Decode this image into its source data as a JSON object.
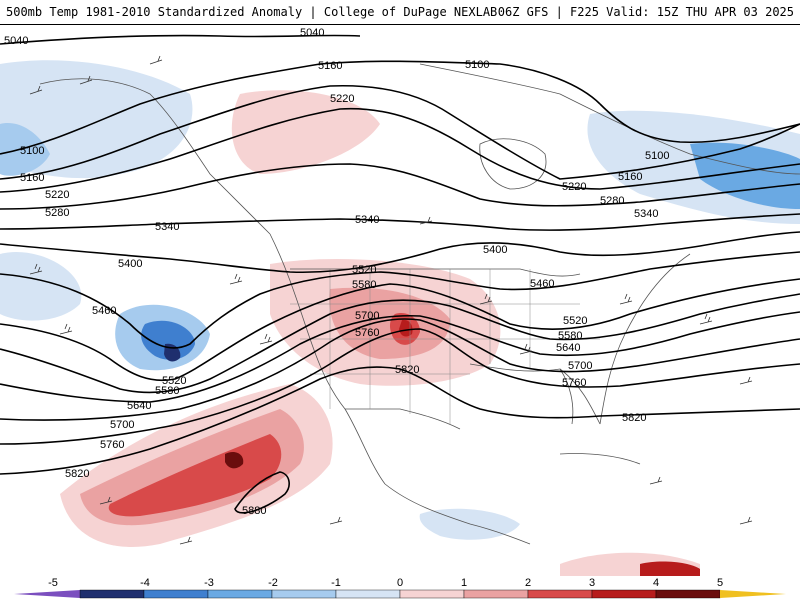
{
  "header": {
    "title_left": "500mb Temp 1981-2010 Standardized Anomaly | College of DuPage NEXLAB",
    "title_right": "06Z GFS | F225 Valid: 15Z THU APR 03 2025"
  },
  "map": {
    "contour_labels": [
      "5040",
      "5100",
      "5160",
      "5220",
      "5280",
      "5340",
      "5400",
      "5460",
      "5520",
      "5580",
      "5640",
      "5700",
      "5760",
      "5820",
      "5880"
    ],
    "colors": {
      "cold_5": "#1f2f6e",
      "cold_4": "#3f7fcf",
      "cold_3": "#6aa9e3",
      "cold_2": "#a6cbee",
      "cold_1": "#d6e4f4",
      "neutral": "#ffffff",
      "warm_1": "#f6d3d3",
      "warm_2": "#eaa2a2",
      "warm_3": "#d84a4a",
      "warm_4": "#b71c1c",
      "warm_5": "#6a0d0d",
      "land_border": "#555555",
      "contour": "#000000"
    }
  },
  "colorbar": {
    "ticks": [
      "-5",
      "-4",
      "-3",
      "-2",
      "-1",
      "0",
      "1",
      "2",
      "3",
      "4",
      "5"
    ],
    "colors": [
      "#7b4fbf",
      "#1f2f6e",
      "#3f7fcf",
      "#6aa9e3",
      "#a6cbee",
      "#d6e4f4",
      "#f6d3d3",
      "#eaa2a2",
      "#d84a4a",
      "#b71c1c",
      "#6a0d0d",
      "#f0c020"
    ]
  }
}
